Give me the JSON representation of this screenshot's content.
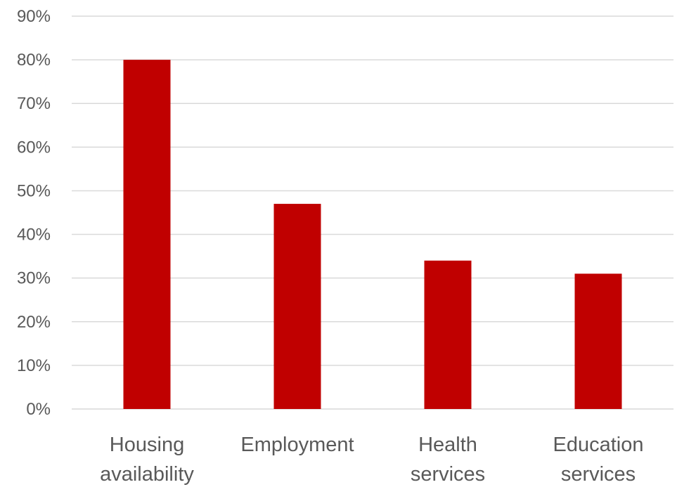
{
  "chart_data": {
    "type": "bar",
    "categories": [
      [
        "Housing",
        "availability"
      ],
      [
        "Employment"
      ],
      [
        "Health",
        "services"
      ],
      [
        "Education",
        "services"
      ]
    ],
    "values": [
      0.8,
      0.47,
      0.34,
      0.31
    ],
    "ylim": [
      0,
      0.9
    ],
    "yticks": [
      0,
      0.1,
      0.2,
      0.3,
      0.4,
      0.5,
      0.6,
      0.7,
      0.8,
      0.9
    ],
    "ytick_labels": [
      "0%",
      "10%",
      "20%",
      "30%",
      "40%",
      "50%",
      "60%",
      "70%",
      "80%",
      "90%"
    ],
    "grid": true,
    "legend": "none",
    "bar_color": "#c00000",
    "title": "",
    "xlabel": "",
    "ylabel": ""
  }
}
